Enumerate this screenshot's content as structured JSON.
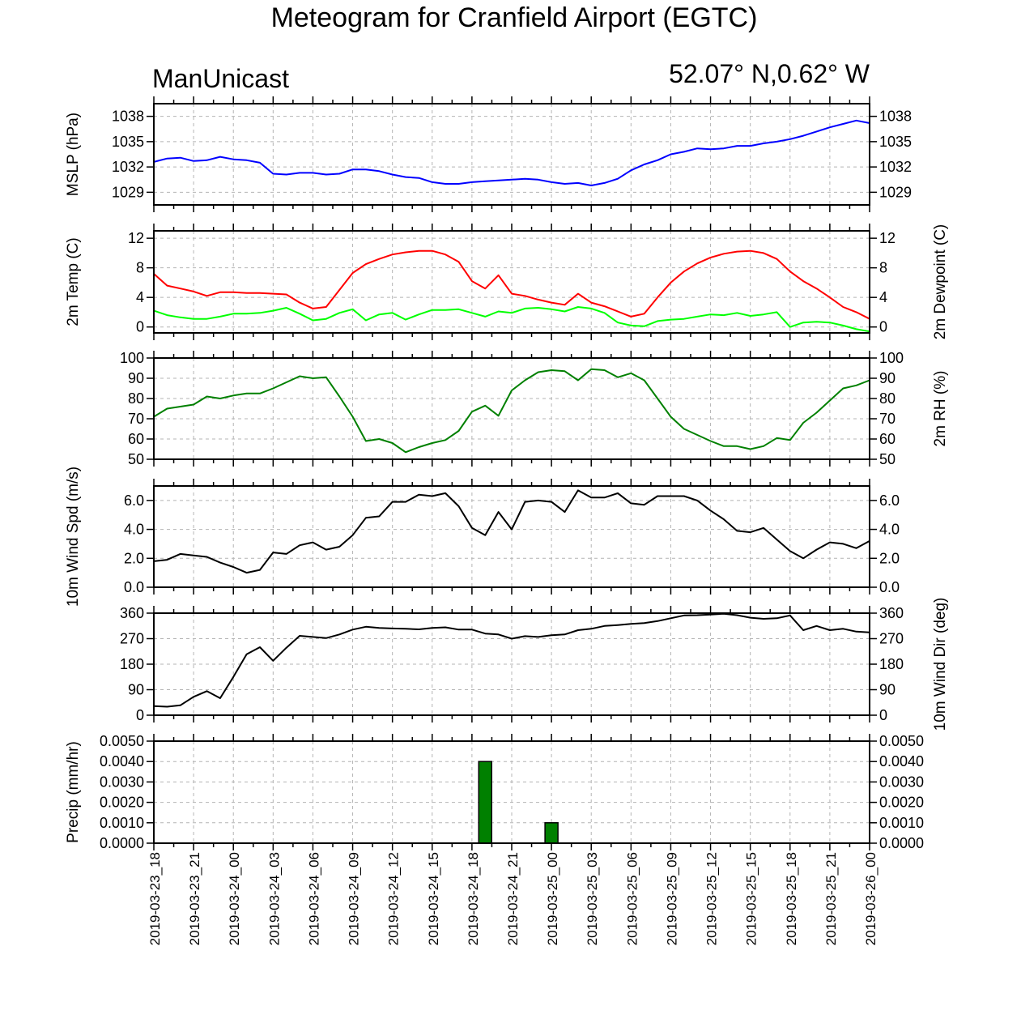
{
  "title": "Meteogram for Cranfield Airport (EGTC)",
  "left_subtitle": "ManUnicast",
  "right_subtitle": "52.07° N,0.62° W",
  "time_labels": [
    "2019-03-23_18",
    "2019-03-23_21",
    "2019-03-24_00",
    "2019-03-24_03",
    "2019-03-24_06",
    "2019-03-24_09",
    "2019-03-24_12",
    "2019-03-24_15",
    "2019-03-24_18",
    "2019-03-24_21",
    "2019-03-25_00",
    "2019-03-25_03",
    "2019-03-25_06",
    "2019-03-25_09",
    "2019-03-25_12",
    "2019-03-25_15",
    "2019-03-25_18",
    "2019-03-25_21",
    "2019-03-26_00"
  ],
  "colors": {
    "mslp": "#0000ff",
    "temp": "#ff0000",
    "dewpoint": "#00ff00",
    "rh": "#008000",
    "wind_speed": "#000000",
    "wind_dir": "#000000",
    "precip_fill": "#008000",
    "grid": "#b4b4b4"
  },
  "chart_data": [
    {
      "type": "line",
      "id": "mslp",
      "ylabel_left": "MSLP (hPa)",
      "ylabel_right": "",
      "x_unit": "hours since 2019-03-23_18 (hourly)",
      "ylim": [
        1027.5,
        1039.5
      ],
      "yticks": [
        1029,
        1032,
        1035,
        1038
      ],
      "ytick_labels": [
        "1029",
        "1032",
        "1035",
        "1038"
      ],
      "series": [
        {
          "color_key": "mslp",
          "x": [
            0,
            1,
            2,
            3,
            4,
            5,
            6,
            7,
            8,
            9,
            10,
            11,
            12,
            13,
            14,
            15,
            16,
            17,
            18,
            19,
            20,
            21,
            22,
            23,
            24,
            25,
            26,
            27,
            28,
            29,
            30,
            31,
            32,
            33,
            34,
            35,
            36,
            37,
            38,
            39,
            40,
            41,
            42,
            43,
            44,
            45,
            46,
            47,
            48,
            49,
            50,
            51,
            52,
            53,
            54
          ],
          "values": [
            1032.6,
            1033.0,
            1033.1,
            1032.7,
            1032.8,
            1033.2,
            1032.9,
            1032.8,
            1032.5,
            1031.2,
            1031.1,
            1031.3,
            1031.3,
            1031.1,
            1031.2,
            1031.7,
            1031.7,
            1031.5,
            1031.1,
            1030.8,
            1030.7,
            1030.2,
            1030.0,
            1030.0,
            1030.2,
            1030.3,
            1030.4,
            1030.5,
            1030.6,
            1030.5,
            1030.2,
            1030.0,
            1030.1,
            1029.8,
            1030.1,
            1030.6,
            1031.6,
            1032.3,
            1032.8,
            1033.5,
            1033.8,
            1034.2,
            1034.1,
            1034.2,
            1034.5,
            1034.5,
            1034.8,
            1035.0,
            1035.3,
            1035.7,
            1036.2,
            1036.7,
            1037.1,
            1037.5,
            1037.2
          ]
        }
      ]
    },
    {
      "type": "line",
      "id": "temp",
      "ylabel_left": "2m Temp (C)",
      "ylabel_right": "2m Dewpoint (C)",
      "ylim": [
        -0.8,
        13.0
      ],
      "yticks": [
        0,
        4,
        8,
        12
      ],
      "ytick_labels": [
        "0",
        "4",
        "8",
        "12"
      ],
      "series": [
        {
          "name": "2m Temp (C)",
          "color_key": "temp",
          "x": [
            0,
            1,
            2,
            3,
            4,
            5,
            6,
            7,
            8,
            9,
            10,
            11,
            12,
            13,
            14,
            15,
            16,
            17,
            18,
            19,
            20,
            21,
            22,
            23,
            24,
            25,
            26,
            27,
            28,
            29,
            30,
            31,
            32,
            33,
            34,
            35,
            36,
            37,
            38,
            39,
            40,
            41,
            42,
            43,
            44,
            45,
            46,
            47,
            48,
            49,
            50,
            51,
            52,
            53,
            54
          ],
          "values": [
            7.2,
            5.6,
            5.2,
            4.8,
            4.2,
            4.7,
            4.7,
            4.6,
            4.6,
            4.5,
            4.4,
            3.3,
            2.5,
            2.7,
            5.0,
            7.3,
            8.5,
            9.2,
            9.8,
            10.1,
            10.3,
            10.3,
            9.8,
            8.8,
            6.2,
            5.2,
            7.0,
            4.5,
            4.2,
            3.7,
            3.3,
            3.0,
            4.5,
            3.3,
            2.8,
            2.1,
            1.4,
            1.8,
            4.0,
            6.0,
            7.5,
            8.6,
            9.4,
            9.9,
            10.2,
            10.3,
            10.0,
            9.2,
            7.5,
            6.2,
            5.2,
            4.0,
            2.7,
            2.0,
            1.1
          ]
        },
        {
          "name": "2m Dewpoint (C)",
          "color_key": "dewpoint",
          "x": [
            0,
            1,
            2,
            3,
            4,
            5,
            6,
            7,
            8,
            9,
            10,
            11,
            12,
            13,
            14,
            15,
            16,
            17,
            18,
            19,
            20,
            21,
            22,
            23,
            24,
            25,
            26,
            27,
            28,
            29,
            30,
            31,
            32,
            33,
            34,
            35,
            36,
            37,
            38,
            39,
            40,
            41,
            42,
            43,
            44,
            45,
            46,
            47,
            48,
            49,
            50,
            51,
            52,
            53,
            54
          ],
          "values": [
            2.2,
            1.6,
            1.3,
            1.1,
            1.1,
            1.4,
            1.8,
            1.8,
            1.9,
            2.2,
            2.6,
            1.8,
            0.9,
            1.1,
            1.9,
            2.4,
            0.9,
            1.7,
            1.9,
            1.0,
            1.7,
            2.3,
            2.3,
            2.4,
            1.9,
            1.4,
            2.1,
            1.9,
            2.5,
            2.6,
            2.4,
            2.1,
            2.7,
            2.5,
            1.9,
            0.6,
            0.2,
            0.1,
            0.8,
            1.0,
            1.1,
            1.4,
            1.7,
            1.6,
            1.9,
            1.5,
            1.7,
            2.0,
            0.0,
            0.6,
            0.7,
            0.6,
            0.2,
            -0.3,
            -0.6
          ]
        }
      ]
    },
    {
      "type": "line",
      "id": "rh",
      "ylabel_left": "",
      "ylabel_right": "2m RH (%)",
      "ylim": [
        50,
        100
      ],
      "yticks": [
        50,
        60,
        70,
        80,
        90,
        100
      ],
      "ytick_labels": [
        "50",
        "60",
        "70",
        "80",
        "90",
        "100"
      ],
      "series": [
        {
          "color_key": "rh",
          "x": [
            0,
            1,
            2,
            3,
            4,
            5,
            6,
            7,
            8,
            9,
            10,
            11,
            12,
            13,
            14,
            15,
            16,
            17,
            18,
            19,
            20,
            21,
            22,
            23,
            24,
            25,
            26,
            27,
            28,
            29,
            30,
            31,
            32,
            33,
            34,
            35,
            36,
            37,
            38,
            39,
            40,
            41,
            42,
            43,
            44,
            45,
            46,
            47,
            48,
            49,
            50,
            51,
            52,
            53,
            54
          ],
          "values": [
            71,
            75,
            76,
            77,
            81,
            80,
            81.5,
            82.5,
            82.5,
            85,
            88,
            91,
            90,
            90.5,
            81,
            71,
            59,
            60,
            58,
            53.5,
            56,
            58,
            59.5,
            64,
            73.5,
            76.5,
            71.5,
            84,
            89,
            93,
            94,
            93.5,
            89,
            94.5,
            94,
            90.5,
            92.5,
            89,
            80,
            71,
            65,
            62,
            59,
            56.5,
            56.5,
            55,
            56.5,
            60.5,
            59.5,
            68,
            73,
            79,
            85,
            86.5,
            89
          ]
        }
      ]
    },
    {
      "type": "line",
      "id": "wind_speed",
      "ylabel_left": "10m Wind Spd (m/s)",
      "ylabel_right": "",
      "ylim": [
        0,
        7.0
      ],
      "yticks": [
        0,
        2,
        4,
        6
      ],
      "ytick_labels": [
        "0.0",
        "2.0",
        "4.0",
        "6.0"
      ],
      "series": [
        {
          "color_key": "wind_speed",
          "x": [
            0,
            1,
            2,
            3,
            4,
            5,
            6,
            7,
            8,
            9,
            10,
            11,
            12,
            13,
            14,
            15,
            16,
            17,
            18,
            19,
            20,
            21,
            22,
            23,
            24,
            25,
            26,
            27,
            28,
            29,
            30,
            31,
            32,
            33,
            34,
            35,
            36,
            37,
            38,
            39,
            40,
            41,
            42,
            43,
            44,
            45,
            46,
            47,
            48,
            49,
            50,
            51,
            52,
            53,
            54
          ],
          "values": [
            1.8,
            1.9,
            2.3,
            2.2,
            2.1,
            1.7,
            1.4,
            1.0,
            1.2,
            2.4,
            2.3,
            2.9,
            3.1,
            2.6,
            2.8,
            3.6,
            4.8,
            4.9,
            5.9,
            5.9,
            6.4,
            6.3,
            6.5,
            5.6,
            4.1,
            3.6,
            5.2,
            4.0,
            5.9,
            6.0,
            5.9,
            5.2,
            6.7,
            6.2,
            6.2,
            6.5,
            5.8,
            5.7,
            6.3,
            6.3,
            6.3,
            6.0,
            5.3,
            4.7,
            3.9,
            3.8,
            4.1,
            3.3,
            2.5,
            2.0,
            2.6,
            3.1,
            3.0,
            2.7,
            3.2
          ]
        }
      ]
    },
    {
      "type": "line",
      "id": "wind_dir",
      "ylabel_left": "",
      "ylabel_right": "10m Wind Dir (deg)",
      "ylim": [
        0,
        360
      ],
      "yticks": [
        0,
        90,
        180,
        270,
        360
      ],
      "ytick_labels": [
        "0",
        "90",
        "180",
        "270",
        "360"
      ],
      "series": [
        {
          "color_key": "wind_dir",
          "x": [
            0,
            1,
            2,
            3,
            4,
            5,
            6,
            7,
            8,
            9,
            10,
            11,
            12,
            13,
            14,
            15,
            16,
            17,
            18,
            19,
            20,
            21,
            22,
            23,
            24,
            25,
            26,
            27,
            28,
            29,
            30,
            31,
            32,
            33,
            34,
            35,
            36,
            37,
            38,
            39,
            40,
            41,
            42,
            43,
            44,
            45,
            46,
            47,
            48,
            49,
            50,
            51,
            52,
            53,
            54
          ],
          "values": [
            32,
            30,
            35,
            65,
            85,
            60,
            135,
            215,
            240,
            192,
            238,
            280,
            276,
            272,
            285,
            302,
            312,
            308,
            306,
            305,
            303,
            308,
            310,
            302,
            302,
            288,
            285,
            270,
            279,
            276,
            282,
            285,
            300,
            305,
            315,
            318,
            322,
            325,
            332,
            342,
            352,
            353,
            355,
            358,
            353,
            344,
            340,
            342,
            352,
            300,
            315,
            300,
            305,
            295,
            292
          ]
        }
      ]
    },
    {
      "type": "bar",
      "id": "precip",
      "ylabel_left": "Precip (mm/hr)",
      "ylabel_right": "",
      "ylim": [
        0,
        0.005
      ],
      "yticks": [
        0,
        0.001,
        0.002,
        0.003,
        0.004,
        0.005
      ],
      "ytick_labels": [
        "0.0000",
        "0.0010",
        "0.0020",
        "0.0030",
        "0.0040",
        "0.0050"
      ],
      "series": [
        {
          "color_key": "precip_fill",
          "x": [
            25,
            30
          ],
          "values": [
            0.004,
            0.001
          ]
        }
      ]
    }
  ]
}
